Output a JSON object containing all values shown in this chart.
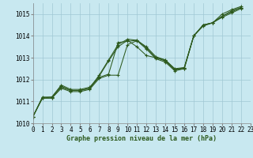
{
  "background_color": "#c8e8f0",
  "grid_color": "#a0c8d4",
  "line_color": "#2d5a1e",
  "xlabel": "Graphe pression niveau de la mer (hPa)",
  "xlim": [
    0,
    23
  ],
  "ylim": [
    1010.0,
    1015.5
  ],
  "yticks": [
    1010,
    1011,
    1012,
    1013,
    1014,
    1015
  ],
  "xticks": [
    0,
    1,
    2,
    3,
    4,
    5,
    6,
    7,
    8,
    9,
    10,
    11,
    12,
    13,
    14,
    15,
    16,
    17,
    18,
    19,
    20,
    21,
    22,
    23
  ],
  "series": [
    [
      1010.3,
      1011.2,
      1011.2,
      1011.7,
      1011.5,
      1011.5,
      1011.6,
      1012.2,
      1012.9,
      1013.6,
      1013.85,
      1013.8,
      1013.5,
      1013.05,
      1012.9,
      1012.45,
      1012.55,
      1014.0,
      1014.5,
      1014.6,
      1014.9,
      1015.15,
      1015.3
    ],
    [
      1010.3,
      1011.15,
      1011.2,
      1011.75,
      1011.55,
      1011.55,
      1011.65,
      1012.15,
      1012.85,
      1013.5,
      1013.8,
      1013.5,
      1013.1,
      1013.0,
      1012.9,
      1012.5,
      1012.55,
      1014.0,
      1014.5,
      1014.6,
      1015.0,
      1015.2,
      1015.35
    ],
    [
      1010.3,
      1011.15,
      1011.15,
      1011.65,
      1011.5,
      1011.5,
      1011.6,
      1012.1,
      1012.25,
      1013.7,
      1013.75,
      1013.8,
      1013.45,
      1013.0,
      1012.85,
      1012.45,
      1012.5,
      1014.0,
      1014.5,
      1014.6,
      1014.9,
      1015.1,
      1015.3
    ],
    [
      1010.3,
      1011.15,
      1011.15,
      1011.6,
      1011.45,
      1011.45,
      1011.55,
      1012.05,
      1012.2,
      1012.2,
      1013.6,
      1013.78,
      1013.4,
      1012.95,
      1012.8,
      1012.4,
      1012.5,
      1014.0,
      1014.45,
      1014.6,
      1014.85,
      1015.05,
      1015.25
    ]
  ]
}
